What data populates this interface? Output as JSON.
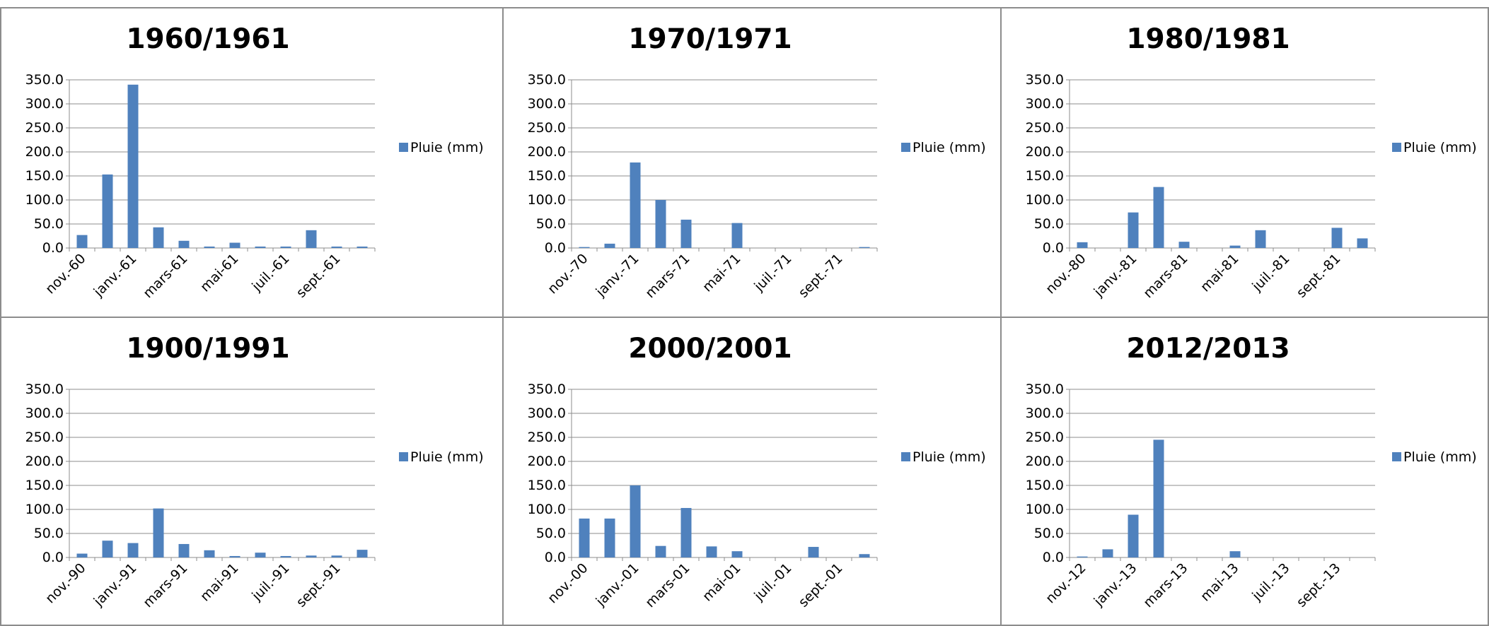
{
  "chart_data": [
    {
      "type": "bar",
      "title": "1960/1961",
      "ylim": [
        0,
        350
      ],
      "yticks": [
        "0.0",
        "50.0",
        "100.0",
        "150.0",
        "200.0",
        "250.0",
        "300.0",
        "350.0"
      ],
      "xtick_labels": [
        "nov.-60",
        "janv.-61",
        "mars-61",
        "mai-61",
        "juil.-61",
        "sept.-61"
      ],
      "grid": true,
      "legend": "right",
      "series": [
        {
          "name": "Pluie (mm)",
          "color": "#4f81bd",
          "values": [
            27,
            153,
            340,
            43,
            15,
            3,
            11,
            3,
            3,
            37,
            3,
            3
          ]
        }
      ]
    },
    {
      "type": "bar",
      "title": "1970/1971",
      "ylim": [
        0,
        350
      ],
      "yticks": [
        "0.0",
        "50.0",
        "100.0",
        "150.0",
        "200.0",
        "250.0",
        "300.0",
        "350.0"
      ],
      "xtick_labels": [
        "nov.-70",
        "janv.-71",
        "mars-71",
        "mai-71",
        "juil.-71",
        "sept.-71"
      ],
      "grid": true,
      "legend": "right",
      "series": [
        {
          "name": "Pluie (mm)",
          "color": "#4f81bd",
          "values": [
            2,
            9,
            178,
            100,
            59,
            0,
            52,
            0,
            0,
            0,
            0,
            2
          ]
        }
      ]
    },
    {
      "type": "bar",
      "title": "1980/1981",
      "ylim": [
        0,
        350
      ],
      "yticks": [
        "0.0",
        "50.0",
        "100.0",
        "150.0",
        "200.0",
        "250.0",
        "300.0",
        "350.0"
      ],
      "xtick_labels": [
        "nov.-80",
        "janv.-81",
        "mars-81",
        "mai-81",
        "juil.-81",
        "sept.-81"
      ],
      "grid": true,
      "legend": "right",
      "series": [
        {
          "name": "Pluie (mm)",
          "color": "#4f81bd",
          "values": [
            12,
            0,
            74,
            127,
            13,
            0,
            5,
            37,
            0,
            0,
            42,
            20
          ]
        }
      ]
    },
    {
      "type": "bar",
      "title": "1900/1991",
      "ylim": [
        0,
        350
      ],
      "yticks": [
        "0.0",
        "50.0",
        "100.0",
        "150.0",
        "200.0",
        "250.0",
        "300.0",
        "350.0"
      ],
      "xtick_labels": [
        "nov.-90",
        "janv.-91",
        "mars-91",
        "mai-91",
        "juil.-91",
        "sept.-91"
      ],
      "grid": true,
      "legend": "right",
      "series": [
        {
          "name": "Pluie (mm)",
          "color": "#4f81bd",
          "values": [
            8,
            35,
            30,
            102,
            28,
            15,
            3,
            10,
            3,
            4,
            4,
            16
          ]
        }
      ]
    },
    {
      "type": "bar",
      "title": "2000/2001",
      "ylim": [
        0,
        350
      ],
      "yticks": [
        "0.0",
        "50.0",
        "100.0",
        "150.0",
        "200.0",
        "250.0",
        "300.0",
        "350.0"
      ],
      "xtick_labels": [
        "nov.-00",
        "janv.-01",
        "mars-01",
        "mai-01",
        "juil.-01",
        "sept.-01"
      ],
      "grid": true,
      "legend": "right",
      "series": [
        {
          "name": "Pluie (mm)",
          "color": "#4f81bd",
          "values": [
            81,
            81,
            150,
            24,
            103,
            23,
            13,
            0,
            0,
            22,
            0,
            7
          ]
        }
      ]
    },
    {
      "type": "bar",
      "title": "2012/2013",
      "ylim": [
        0,
        350
      ],
      "yticks": [
        "0.0",
        "50.0",
        "100.0",
        "150.0",
        "200.0",
        "250.0",
        "300.0",
        "350.0"
      ],
      "xtick_labels": [
        "nov.-12",
        "janv.-13",
        "mars-13",
        "mai-13",
        "juil.-13",
        "sept.-13"
      ],
      "grid": true,
      "legend": "right",
      "series": [
        {
          "name": "Pluie (mm)",
          "color": "#4f81bd",
          "values": [
            2,
            17,
            89,
            245,
            0,
            0,
            13,
            0,
            0,
            0,
            0,
            0
          ]
        }
      ]
    }
  ]
}
